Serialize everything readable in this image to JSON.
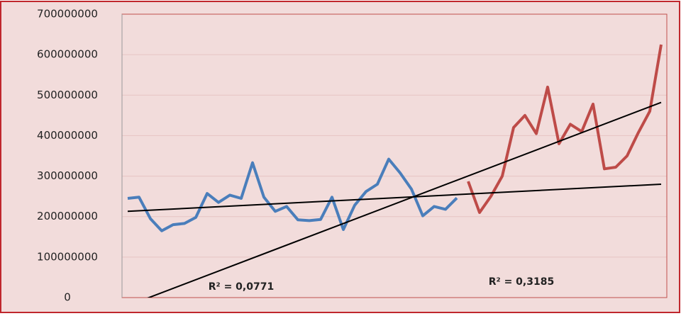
{
  "chart_data": {
    "type": "line",
    "categories": [
      null,
      null,
      null,
      null,
      null,
      null,
      null,
      null,
      null,
      null,
      null,
      null,
      null,
      null,
      null,
      null,
      null,
      null,
      null,
      null,
      null,
      null,
      null,
      null,
      null,
      null,
      null,
      null,
      null,
      null,
      null,
      null,
      null,
      null,
      null,
      null,
      null,
      null,
      null,
      null,
      null,
      null,
      null,
      null,
      null,
      null,
      null,
      null
    ],
    "series": [
      {
        "color": "#4a7ebb",
        "values": [
          245000000,
          248000000,
          195000000,
          165000000,
          180000000,
          183000000,
          198000000,
          257000000,
          235000000,
          253000000,
          245000000,
          333000000,
          248000000,
          213000000,
          225000000,
          192000000,
          190000000,
          193000000,
          248000000,
          168000000,
          228000000,
          262000000,
          280000000,
          342000000,
          308000000,
          268000000,
          202000000,
          225000000,
          218000000,
          246000000,
          null,
          null,
          null,
          null,
          null,
          null,
          null,
          null,
          null,
          null,
          null,
          null,
          null,
          null,
          null,
          null,
          null,
          null
        ]
      },
      {
        "color": "#be4b48",
        "values": [
          null,
          null,
          null,
          null,
          null,
          null,
          null,
          null,
          null,
          null,
          null,
          null,
          null,
          null,
          null,
          null,
          null,
          null,
          null,
          null,
          null,
          null,
          null,
          null,
          null,
          null,
          null,
          null,
          null,
          null,
          287000000,
          210000000,
          250000000,
          300000000,
          420000000,
          450000000,
          405000000,
          520000000,
          380000000,
          428000000,
          410000000,
          478000000,
          318000000,
          322000000,
          350000000,
          408000000,
          460000000,
          625000000
        ]
      }
    ],
    "trendlines": [
      {
        "label": "R² = 0,0771",
        "color": "#000000",
        "start": 213000000,
        "end": 280000000
      },
      {
        "label": "R² = 0,3185",
        "color": "#000000",
        "start": -20000000,
        "end": 482000000
      }
    ],
    "ylim": [
      0,
      700000000
    ],
    "yticks": [
      0,
      100000000,
      200000000,
      300000000,
      400000000,
      500000000,
      600000000,
      700000000
    ],
    "grid": true
  }
}
